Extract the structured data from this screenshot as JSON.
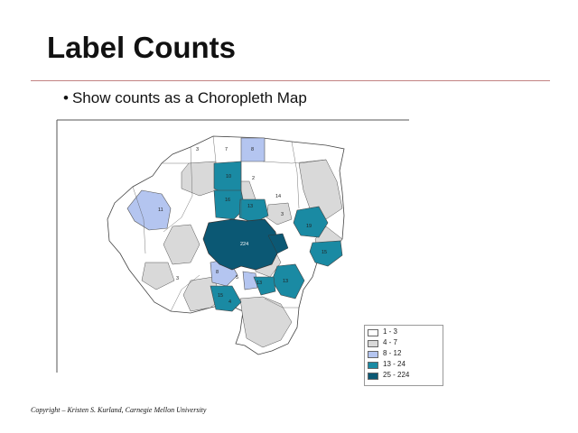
{
  "slide": {
    "title": "Label Counts",
    "bullet": "Show counts as a Choropleth Map",
    "footer": "Copyright – Kristen S. Kurland, Carnegie Mellon University"
  },
  "legend": {
    "items": [
      {
        "label": "1 - 3",
        "color": "#ffffff"
      },
      {
        "label": "4 - 7",
        "color": "#d9d9d9"
      },
      {
        "label": "8 - 12",
        "color": "#b4c5f0"
      },
      {
        "label": "13 - 24",
        "color": "#1a8aa3"
      },
      {
        "label": "25 - 224",
        "color": "#0b5874"
      }
    ]
  },
  "map": {
    "labels": [
      "3",
      "7",
      "8",
      "10",
      "2",
      "16",
      "13",
      "14",
      "11",
      "19",
      "224",
      "15",
      "3",
      "13",
      "5",
      "13",
      "3",
      "8",
      "4",
      "15"
    ]
  }
}
